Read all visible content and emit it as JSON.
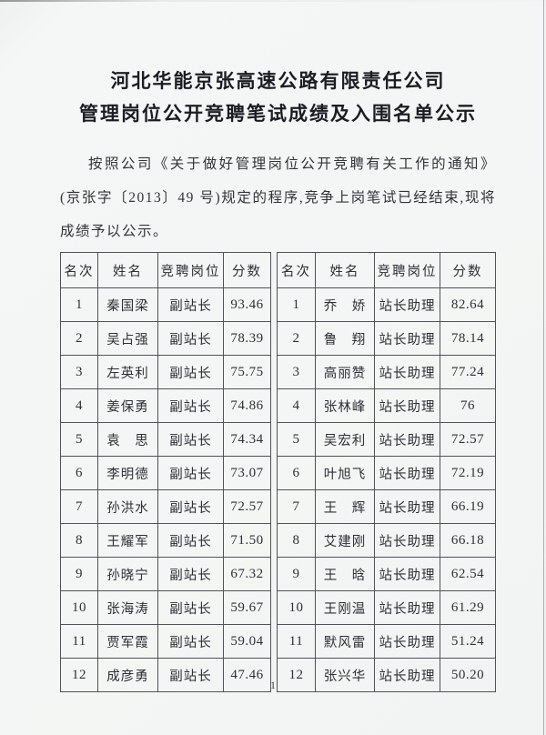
{
  "page": {
    "title_line1": "河北华能京张高速公路有限责任公司",
    "title_line2": "管理岗位公开竞聘笔试成绩及入围名单公示",
    "paragraph": "按照公司《关于做好管理岗位公开竞聘有关工作的通知》(京张字〔2013〕49 号)规定的程序,竞争上岗笔试已经结束,现将成绩予以公示。",
    "page_number": "1"
  },
  "table": {
    "headers": [
      "名次",
      "姓名",
      "竞聘岗位",
      "分数"
    ],
    "left_rows": [
      [
        "1",
        "秦国梁",
        "副站长",
        "93.46"
      ],
      [
        "2",
        "吴占强",
        "副站长",
        "78.39"
      ],
      [
        "3",
        "左英利",
        "副站长",
        "75.75"
      ],
      [
        "4",
        "姜保勇",
        "副站长",
        "74.86"
      ],
      [
        "5",
        "袁　思",
        "副站长",
        "74.34"
      ],
      [
        "6",
        "李明德",
        "副站长",
        "73.07"
      ],
      [
        "7",
        "孙洪水",
        "副站长",
        "72.57"
      ],
      [
        "8",
        "王耀军",
        "副站长",
        "71.50"
      ],
      [
        "9",
        "孙晓宁",
        "副站长",
        "67.32"
      ],
      [
        "10",
        "张海涛",
        "副站长",
        "59.67"
      ],
      [
        "11",
        "贾军霞",
        "副站长",
        "59.04"
      ],
      [
        "12",
        "成彦勇",
        "副站长",
        "47.46"
      ]
    ],
    "right_rows": [
      [
        "1",
        "乔　娇",
        "站长助理",
        "82.64"
      ],
      [
        "2",
        "鲁　翔",
        "站长助理",
        "78.14"
      ],
      [
        "3",
        "高丽赞",
        "站长助理",
        "77.24"
      ],
      [
        "4",
        "张林峰",
        "站长助理",
        "76"
      ],
      [
        "5",
        "吴宏利",
        "站长助理",
        "72.57"
      ],
      [
        "6",
        "叶旭飞",
        "站长助理",
        "72.19"
      ],
      [
        "7",
        "王　辉",
        "站长助理",
        "66.19"
      ],
      [
        "8",
        "艾建刚",
        "站长助理",
        "66.18"
      ],
      [
        "9",
        "王　晗",
        "站长助理",
        "62.54"
      ],
      [
        "10",
        "王刚温",
        "站长助理",
        "61.29"
      ],
      [
        "11",
        "默风雷",
        "站长助理",
        "51.24"
      ],
      [
        "12",
        "张兴华",
        "站长助理",
        "50.20"
      ]
    ]
  }
}
